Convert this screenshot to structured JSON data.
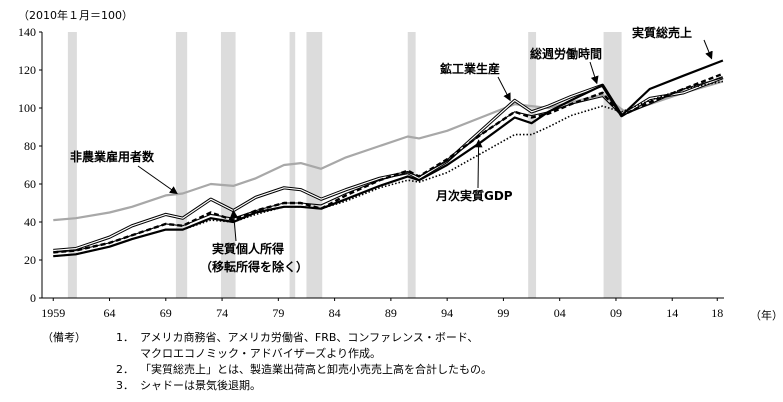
{
  "chart_data": {
    "type": "line",
    "unit_label": "（2010年１月＝100）",
    "x_unit": "（年）",
    "ylim": [
      0,
      140
    ],
    "xlim": [
      1958,
      2018.6
    ],
    "y_ticks": [
      0,
      20,
      40,
      60,
      80,
      100,
      120,
      140
    ],
    "x_ticks": [
      {
        "value": 1959,
        "label": "1959"
      },
      {
        "value": 1964,
        "label": "64"
      },
      {
        "value": 1969,
        "label": "69"
      },
      {
        "value": 1974,
        "label": "74"
      },
      {
        "value": 1979,
        "label": "79"
      },
      {
        "value": 1984,
        "label": "84"
      },
      {
        "value": 1989,
        "label": "89"
      },
      {
        "value": 1994,
        "label": "94"
      },
      {
        "value": 1999,
        "label": "99"
      },
      {
        "value": 2004,
        "label": "04"
      },
      {
        "value": 2009,
        "label": "09"
      },
      {
        "value": 2014,
        "label": "14"
      },
      {
        "value": 2018,
        "label": "18"
      }
    ],
    "recessions": [
      [
        1960.3,
        1961.1
      ],
      [
        1969.9,
        1970.9
      ],
      [
        1973.9,
        1975.2
      ],
      [
        1980.0,
        1980.5
      ],
      [
        1981.5,
        1982.9
      ],
      [
        1990.5,
        1991.2
      ],
      [
        2001.2,
        2001.9
      ],
      [
        2007.9,
        2009.5
      ]
    ],
    "series": [
      {
        "name": "非農業雇用者数",
        "color": "#a8a8a8",
        "style": "solid-thick",
        "x": [
          1959,
          1961,
          1964,
          1966,
          1969,
          1970.5,
          1973,
          1975,
          1977,
          1979.5,
          1981,
          1982.8,
          1985,
          1988,
          1990.5,
          1991.5,
          1994,
          1997,
          2000,
          2001.5,
          2003,
          2005,
          2007.8,
          2009.8,
          2012,
          2015,
          2018.5
        ],
        "values": [
          41,
          42,
          45,
          48,
          54,
          55,
          60,
          59,
          63,
          70,
          71,
          68,
          74,
          80,
          85,
          84,
          88,
          95,
          102,
          101,
          100,
          103,
          107,
          98,
          102,
          108,
          114
        ]
      },
      {
        "name": "鉱工業生産",
        "color": "#000000",
        "style": "double",
        "x": [
          1959,
          1961,
          1964,
          1966,
          1969,
          1970.5,
          1973,
          1975,
          1977,
          1979.5,
          1981,
          1982.8,
          1985,
          1988,
          1990.5,
          1991.5,
          1994,
          1997,
          2000,
          2001.5,
          2003,
          2005,
          2007.8,
          2009.5,
          2012,
          2015,
          2018.5
        ],
        "values": [
          25,
          26,
          32,
          38,
          44,
          42,
          52,
          46,
          53,
          58,
          57,
          52,
          57,
          63,
          66,
          63,
          72,
          88,
          104,
          98,
          101,
          106,
          112,
          96,
          105,
          108,
          116
        ]
      },
      {
        "name": "総週労働時間",
        "color": "#000000",
        "style": "dashed",
        "x": [
          1959,
          1961,
          1964,
          1966,
          1969,
          1970.5,
          1973,
          1975,
          1977,
          1979.5,
          1981,
          1982.8,
          1985,
          1988,
          1990.5,
          1991.5,
          1994,
          1997,
          2000,
          2001.5,
          2003,
          2005,
          2007.8,
          2009.5,
          2012,
          2015,
          2018.5
        ],
        "values": [
          24,
          25,
          29,
          33,
          39,
          38,
          45,
          41,
          46,
          50,
          50,
          47,
          54,
          62,
          67,
          64,
          73,
          86,
          98,
          95,
          97,
          102,
          108,
          96,
          103,
          110,
          118
        ]
      },
      {
        "name": "実質総売上",
        "color": "#000000",
        "style": "solid-thick",
        "x": [
          1959,
          1961,
          1964,
          1966,
          1969,
          1970.5,
          1973,
          1975,
          1977,
          1979.5,
          1981,
          1982.8,
          1985,
          1988,
          1990.5,
          1991.5,
          1994,
          1997,
          2000,
          2001.5,
          2003,
          2005,
          2007.8,
          2009.5,
          2012,
          2015,
          2018.5
        ],
        "values": [
          22,
          23,
          27,
          31,
          36,
          36,
          42,
          40,
          45,
          48,
          48,
          47,
          52,
          59,
          64,
          62,
          70,
          82,
          95,
          92,
          98,
          104,
          112,
          96,
          110,
          117,
          125
        ]
      },
      {
        "name": "実質個人所得（移転所得を除く）",
        "color": "#000000",
        "style": "solid-thin",
        "x": [
          1959,
          1961,
          1964,
          1966,
          1969,
          1970.5,
          1973,
          1975,
          1977,
          1979.5,
          1981,
          1982.8,
          1985,
          1988,
          1990.5,
          1991.5,
          1994,
          1997,
          2000,
          2001.5,
          2003,
          2005,
          2007.8,
          2009.5,
          2012,
          2015,
          2018.5
        ],
        "values": [
          24,
          25,
          29,
          33,
          39,
          38,
          44,
          42,
          46,
          50,
          50,
          49,
          55,
          62,
          66,
          64,
          72,
          86,
          98,
          96,
          98,
          102,
          106,
          96,
          102,
          110,
          116
        ]
      },
      {
        "name": "月次実質GDP",
        "color": "#000000",
        "style": "dotted",
        "x": [
          1959,
          1961,
          1964,
          1966,
          1969,
          1970.5,
          1973,
          1975,
          1977,
          1979.5,
          1981,
          1982.8,
          1985,
          1988,
          1990.5,
          1991.5,
          1994,
          1997,
          2000,
          2001.5,
          2003,
          2005,
          2007.8,
          2009.5,
          2012,
          2015,
          2018.5
        ],
        "values": [
          22,
          23,
          27,
          31,
          36,
          36,
          41,
          40,
          44,
          48,
          48,
          47,
          51,
          58,
          62,
          61,
          66,
          76,
          86,
          86,
          90,
          96,
          101,
          98,
          104,
          110,
          114
        ]
      }
    ],
    "annotations": [
      {
        "text": "実質総売上",
        "target_x": 2017.5,
        "target_y": 126
      },
      {
        "text": "総週労働時間",
        "target_x": 2007.3,
        "target_y": 113
      },
      {
        "text": "鉱工業生産",
        "target_x": 1999.6,
        "target_y": 104
      },
      {
        "text": "非農業雇用者数",
        "target_x": 1970,
        "target_y": 55
      },
      {
        "text": "月次実質GDP",
        "target_x": 1996.8,
        "target_y": 83
      },
      {
        "text": "実質個人所得",
        "target_x": 1975,
        "target_y": 46
      },
      {
        "text": "（移転所得を除く）"
      }
    ]
  },
  "notes": {
    "head": "（備考）",
    "items": [
      {
        "num": "1．",
        "lines": [
          "アメリカ商務省、アメリカ労働省、FRB、コンファレンス・ボード、",
          "マクロエコノミック・アドバイザーズより作成。"
        ]
      },
      {
        "num": "2．",
        "lines": [
          "「実質総売上」とは、製造業出荷高と卸売小売売上高を合計したもの。"
        ]
      },
      {
        "num": "3．",
        "lines": [
          "シャドーは景気後退期。"
        ]
      }
    ]
  }
}
